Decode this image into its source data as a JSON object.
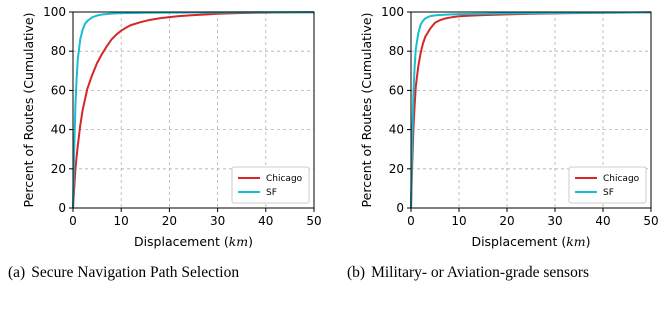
{
  "colors": {
    "chicago": "#d62728",
    "sf": "#17becf",
    "grid": "#b0b0b0"
  },
  "chart_data": [
    {
      "type": "line",
      "caption_label": "(a)",
      "caption": "Secure Navigation Path Selection",
      "xlabel": "Displacement",
      "xlabel_unit": "km",
      "ylabel": "Percent of Routes (Cumulative)",
      "xlim": [
        0,
        50
      ],
      "ylim": [
        0,
        100
      ],
      "xticks": [
        0,
        10,
        20,
        30,
        40,
        50
      ],
      "yticks": [
        0,
        20,
        40,
        60,
        80,
        100
      ],
      "grid": true,
      "legend_position": "bottom-right",
      "series": [
        {
          "name": "Chicago",
          "color_key": "chicago",
          "x": [
            0,
            0.5,
            1,
            1.5,
            2,
            3,
            4,
            5,
            6,
            7,
            8,
            9,
            10,
            11,
            12,
            14,
            16,
            18,
            20,
            22,
            25,
            28,
            30,
            35,
            40,
            45,
            50
          ],
          "y": [
            0,
            20,
            32,
            42,
            50,
            61,
            68,
            74,
            78.5,
            82.5,
            86,
            88.5,
            90.5,
            92,
            93.3,
            94.8,
            96,
            96.8,
            97.4,
            97.9,
            98.4,
            98.8,
            99.1,
            99.5,
            99.7,
            99.8,
            99.9
          ]
        },
        {
          "name": "SF",
          "color_key": "sf",
          "x": [
            0,
            0.25,
            0.5,
            0.75,
            1,
            1.5,
            2,
            2.5,
            3,
            4,
            5,
            6,
            8,
            10,
            15,
            20,
            30,
            40,
            50
          ],
          "y": [
            0,
            30,
            52,
            66,
            76,
            86,
            91,
            94,
            95.5,
            97.3,
            98.2,
            98.7,
            99.2,
            99.4,
            99.6,
            99.7,
            99.8,
            99.9,
            99.9
          ]
        }
      ]
    },
    {
      "type": "line",
      "caption_label": "(b)",
      "caption": "Military- or Aviation-grade sensors",
      "xlabel": "Displacement",
      "xlabel_unit": "km",
      "ylabel": "Percent of Routes (Cumulative)",
      "xlim": [
        0,
        50
      ],
      "ylim": [
        0,
        100
      ],
      "xticks": [
        0,
        10,
        20,
        30,
        40,
        50
      ],
      "yticks": [
        0,
        20,
        40,
        60,
        80,
        100
      ],
      "grid": true,
      "legend_position": "bottom-right",
      "series": [
        {
          "name": "Chicago",
          "color_key": "chicago",
          "x": [
            0,
            0.25,
            0.5,
            0.75,
            1,
            1.5,
            2,
            2.5,
            3,
            4,
            5,
            6,
            7,
            8,
            9,
            10,
            12,
            15,
            20,
            25,
            30,
            40,
            50
          ],
          "y": [
            0,
            22,
            40,
            52,
            62,
            72,
            79,
            84,
            87.5,
            91.5,
            94.5,
            95.8,
            96.6,
            97.1,
            97.5,
            97.8,
            98.1,
            98.4,
            98.8,
            99.1,
            99.3,
            99.6,
            99.8
          ]
        },
        {
          "name": "SF",
          "color_key": "sf",
          "x": [
            0,
            0.25,
            0.5,
            0.75,
            1,
            1.5,
            2,
            2.5,
            3,
            4,
            5,
            6,
            8,
            10,
            15,
            20,
            30,
            40,
            50
          ],
          "y": [
            0,
            35,
            58,
            72,
            81,
            89,
            93.5,
            95.5,
            96.8,
            97.9,
            98.3,
            98.5,
            98.7,
            98.9,
            99.1,
            99.3,
            99.5,
            99.7,
            99.8
          ]
        }
      ]
    }
  ]
}
